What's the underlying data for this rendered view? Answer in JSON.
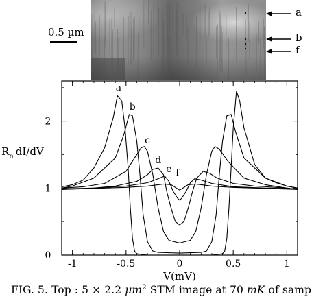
{
  "stm_image": {
    "scale_bar_label": "0.5 µm",
    "arrow_labels": [
      "a",
      "b",
      "f"
    ]
  },
  "chart_data": {
    "type": "line",
    "title": "",
    "xlabel": "V(mV)",
    "ylabel": "R n dI/dV",
    "ylabel_main": "R",
    "ylabel_sub": "n",
    "ylabel_rest": "dI/dV",
    "xlim": [
      -1.1,
      1.1
    ],
    "ylim": [
      0,
      2.6
    ],
    "x_ticks": [
      -1,
      -0.5,
      0,
      0.5,
      1
    ],
    "x_tick_labels": [
      "-1",
      "-0.5",
      "0",
      "0.5",
      "1"
    ],
    "y_ticks": [
      0,
      1,
      2
    ],
    "y_tick_labels": [
      "0",
      "1",
      "2"
    ],
    "grid": false,
    "curve_labels": [
      {
        "text": "a",
        "x": -0.57,
        "y": 2.45
      },
      {
        "text": "b",
        "x": -0.44,
        "y": 2.17
      },
      {
        "text": "c",
        "x": -0.3,
        "y": 1.67
      },
      {
        "text": "d",
        "x": -0.2,
        "y": 1.37
      },
      {
        "text": "e",
        "x": -0.1,
        "y": 1.24
      },
      {
        "text": "f",
        "x": -0.02,
        "y": 1.18
      }
    ],
    "series": [
      {
        "name": "a",
        "x": [
          -1.1,
          -1.0,
          -0.9,
          -0.8,
          -0.7,
          -0.62,
          -0.58,
          -0.54,
          -0.51,
          -0.48,
          -0.46,
          -0.44,
          -0.42,
          -0.4,
          -0.3,
          -0.2,
          0,
          0.2,
          0.3,
          0.4,
          0.42,
          0.44,
          0.46,
          0.48,
          0.5,
          0.53,
          0.56,
          0.6,
          0.7,
          0.8,
          0.9,
          1.0,
          1.1
        ],
        "y": [
          1.02,
          1.05,
          1.12,
          1.3,
          1.6,
          2.05,
          2.38,
          2.3,
          1.9,
          1.3,
          0.7,
          0.25,
          0.06,
          0.02,
          0.0,
          0.0,
          0.0,
          0.0,
          0.0,
          0.02,
          0.06,
          0.25,
          0.7,
          1.3,
          1.9,
          2.45,
          2.3,
          1.9,
          1.35,
          1.15,
          1.08,
          1.03,
          1.0
        ]
      },
      {
        "name": "b",
        "x": [
          -1.1,
          -1.0,
          -0.8,
          -0.6,
          -0.52,
          -0.47,
          -0.44,
          -0.4,
          -0.37,
          -0.34,
          -0.3,
          -0.25,
          -0.2,
          0,
          0.2,
          0.25,
          0.3,
          0.34,
          0.37,
          0.4,
          0.44,
          0.48,
          0.52,
          0.6,
          0.8,
          1.0,
          1.1
        ],
        "y": [
          1.0,
          1.03,
          1.15,
          1.45,
          1.8,
          2.1,
          2.08,
          1.7,
          1.2,
          0.6,
          0.2,
          0.06,
          0.04,
          0.03,
          0.04,
          0.06,
          0.2,
          0.6,
          1.2,
          1.7,
          2.08,
          2.1,
          1.85,
          1.45,
          1.15,
          1.03,
          1.0
        ]
      },
      {
        "name": "c",
        "x": [
          -1.1,
          -0.9,
          -0.7,
          -0.5,
          -0.42,
          -0.36,
          -0.33,
          -0.3,
          -0.25,
          -0.2,
          -0.15,
          -0.1,
          0,
          0.1,
          0.15,
          0.2,
          0.25,
          0.3,
          0.33,
          0.37,
          0.45,
          0.6,
          0.8,
          1.0,
          1.1
        ],
        "y": [
          1.0,
          1.02,
          1.07,
          1.25,
          1.45,
          1.6,
          1.62,
          1.55,
          1.2,
          0.7,
          0.35,
          0.22,
          0.18,
          0.22,
          0.35,
          0.7,
          1.2,
          1.55,
          1.62,
          1.58,
          1.4,
          1.15,
          1.05,
          1.0,
          0.98
        ]
      },
      {
        "name": "d",
        "x": [
          -1.1,
          -0.8,
          -0.6,
          -0.4,
          -0.3,
          -0.25,
          -0.2,
          -0.15,
          -0.12,
          -0.08,
          -0.04,
          0,
          0.04,
          0.08,
          0.12,
          0.16,
          0.22,
          0.28,
          0.35,
          0.5,
          0.7,
          1.0,
          1.1
        ],
        "y": [
          0.98,
          1.0,
          1.03,
          1.1,
          1.2,
          1.28,
          1.3,
          1.2,
          0.95,
          0.7,
          0.5,
          0.45,
          0.5,
          0.7,
          0.95,
          1.15,
          1.25,
          1.22,
          1.15,
          1.07,
          1.03,
          1.0,
          0.98
        ]
      },
      {
        "name": "e",
        "x": [
          -1.1,
          -0.8,
          -0.5,
          -0.3,
          -0.2,
          -0.14,
          -0.1,
          -0.06,
          -0.02,
          0,
          0.02,
          0.06,
          0.1,
          0.14,
          0.2,
          0.3,
          0.5,
          0.8,
          1.1
        ],
        "y": [
          0.99,
          1.0,
          1.03,
          1.08,
          1.14,
          1.18,
          1.1,
          0.95,
          0.85,
          0.82,
          0.85,
          0.95,
          1.08,
          1.14,
          1.12,
          1.07,
          1.02,
          1.0,
          0.99
        ]
      },
      {
        "name": "f",
        "x": [
          -1.1,
          -0.9,
          -0.7,
          -0.5,
          -0.3,
          -0.15,
          -0.08,
          -0.03,
          0,
          0.03,
          0.08,
          0.15,
          0.3,
          0.5,
          0.7,
          0.9,
          1.1
        ],
        "y": [
          0.98,
          0.99,
          1.0,
          1.01,
          1.03,
          1.06,
          1.05,
          1.0,
          0.97,
          1.0,
          1.05,
          1.06,
          1.03,
          1.01,
          1.0,
          0.99,
          0.98
        ]
      }
    ]
  },
  "caption": {
    "prefix": "FIG. 5.  Top : 5 × 2.2 ",
    "unit": "μm",
    "power": "2",
    "middle": " STM image at 70 ",
    "unit2": "mK",
    "suffix": " of samp"
  }
}
